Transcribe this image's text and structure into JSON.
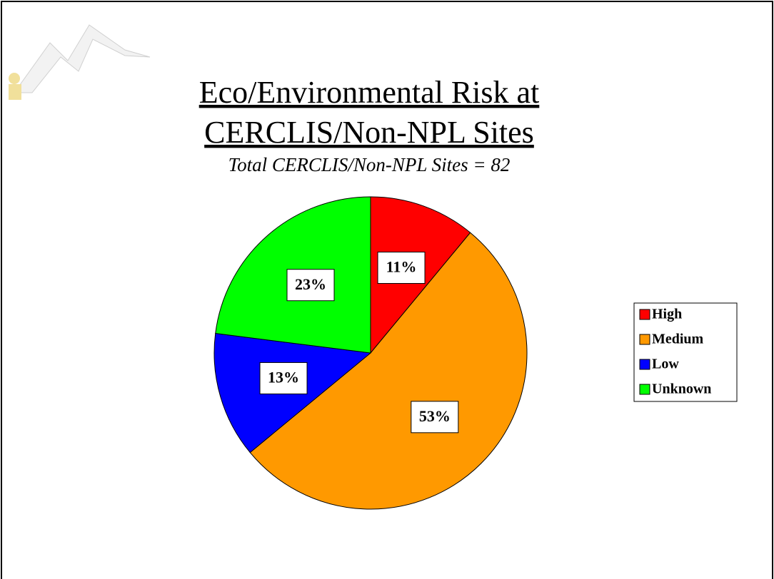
{
  "chart_data": {
    "type": "pie",
    "title": [
      "Eco/Environmental Risk at",
      "CERCLIS/Non-NPL Sites"
    ],
    "subtitle": "Total CERCLIS/Non-NPL Sites = 82",
    "categories": [
      "High",
      "Medium",
      "Low",
      "Unknown"
    ],
    "values": [
      11,
      53,
      13,
      23
    ],
    "value_labels": [
      "11%",
      "53%",
      "13%",
      "23%"
    ],
    "colors": [
      "#ff0000",
      "#ff9900",
      "#0000ff",
      "#00ff00"
    ],
    "legend": "right"
  }
}
